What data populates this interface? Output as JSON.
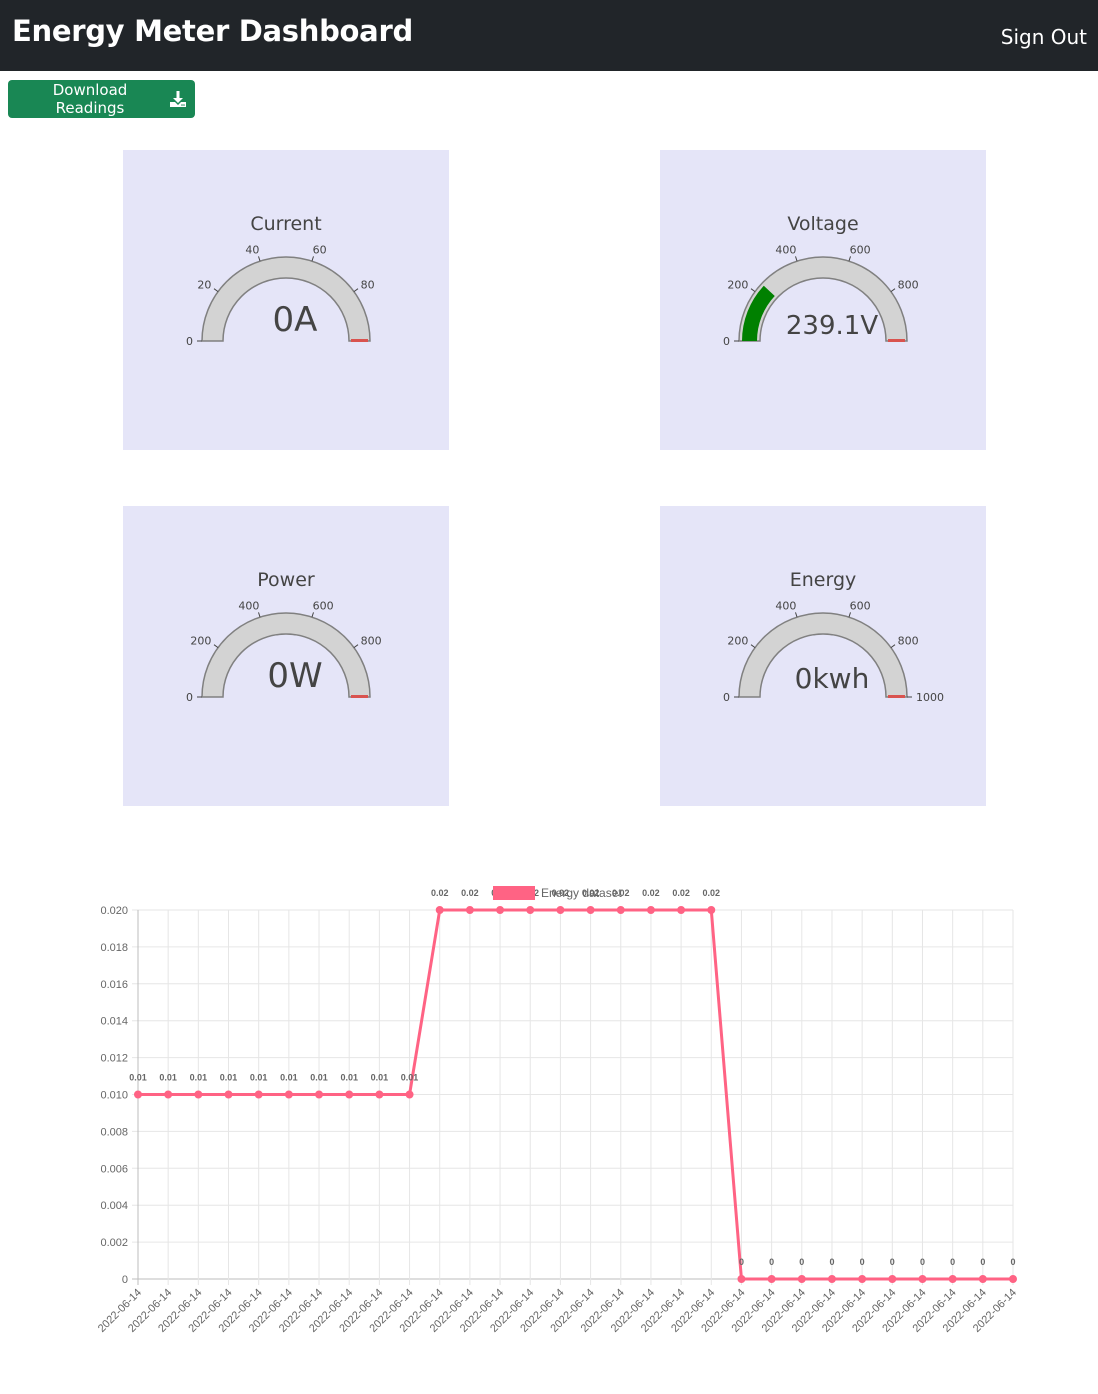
{
  "navbar": {
    "title": "Energy Meter Dashboard",
    "signout_label": "Sign Out"
  },
  "toolbar": {
    "download_label": "Download Readings",
    "download_icon": "download-icon"
  },
  "colors": {
    "navbar": "#212529",
    "download_button": "#198754",
    "gauge_background": "#e5e5f8",
    "gauge_track": "#d3d3d3",
    "gauge_fill": "#008000",
    "gauge_threshold": "#d9534f",
    "chart_line": "#ff6384"
  },
  "gauges": [
    {
      "id": "current",
      "title": "Current",
      "value_text": "0A",
      "value": 0,
      "max": 100,
      "ticks": [
        "0",
        "20",
        "40",
        "60",
        "80"
      ],
      "tick_values": [
        0,
        20,
        40,
        60,
        80
      ]
    },
    {
      "id": "voltage",
      "title": "Voltage",
      "value_text": "239.1V",
      "value": 239.1,
      "max": 1000,
      "ticks": [
        "0",
        "200",
        "400",
        "600",
        "800"
      ],
      "tick_values": [
        0,
        200,
        400,
        600,
        800
      ]
    },
    {
      "id": "power",
      "title": "Power",
      "value_text": "0W",
      "value": 0,
      "max": 1000,
      "ticks": [
        "0",
        "200",
        "400",
        "600",
        "800"
      ],
      "tick_values": [
        0,
        200,
        400,
        600,
        800
      ]
    },
    {
      "id": "energy",
      "title": "Energy",
      "value_text": "0kwh",
      "value": 0,
      "max": 1000,
      "ticks": [
        "0",
        "200",
        "400",
        "600",
        "800",
        "1000"
      ],
      "tick_values": [
        0,
        200,
        400,
        600,
        800,
        1000
      ]
    }
  ],
  "chart_data": {
    "type": "line",
    "title": "",
    "xlabel": "",
    "ylabel": "",
    "ylim": [
      0,
      0.02
    ],
    "yticks": [
      "0",
      "0.002",
      "0.004",
      "0.006",
      "0.008",
      "0.010",
      "0.012",
      "0.014",
      "0.016",
      "0.018",
      "0.020"
    ],
    "grid": true,
    "legend": "top-center",
    "categories": [
      "2022-06-14",
      "2022-06-14",
      "2022-06-14",
      "2022-06-14",
      "2022-06-14",
      "2022-06-14",
      "2022-06-14",
      "2022-06-14",
      "2022-06-14",
      "2022-06-14",
      "2022-06-14",
      "2022-06-14",
      "2022-06-14",
      "2022-06-14",
      "2022-06-14",
      "2022-06-14",
      "2022-06-14",
      "2022-06-14",
      "2022-06-14",
      "2022-06-14",
      "2022-06-14",
      "2022-06-14",
      "2022-06-14",
      "2022-06-14",
      "2022-06-14",
      "2022-06-14",
      "2022-06-14",
      "2022-06-14",
      "2022-06-14",
      "2022-06-14"
    ],
    "series": [
      {
        "name": "Energy dataset",
        "values": [
          0.01,
          0.01,
          0.01,
          0.01,
          0.01,
          0.01,
          0.01,
          0.01,
          0.01,
          0.01,
          0.02,
          0.02,
          0.02,
          0.02,
          0.02,
          0.02,
          0.02,
          0.02,
          0.02,
          0.02,
          0,
          0,
          0,
          0,
          0,
          0,
          0,
          0,
          0,
          0
        ],
        "labels": [
          "0.01",
          "0.01",
          "0.01",
          "0.01",
          "0.01",
          "0.01",
          "0.01",
          "0.01",
          "0.01",
          "0.01",
          "0.02",
          "0.02",
          "0.02",
          "0.02",
          "0.02",
          "0.02",
          "0.02",
          "0.02",
          "0.02",
          "0.02",
          "0",
          "0",
          "0",
          "0",
          "0",
          "0",
          "0",
          "0",
          "0",
          "0"
        ]
      }
    ]
  }
}
